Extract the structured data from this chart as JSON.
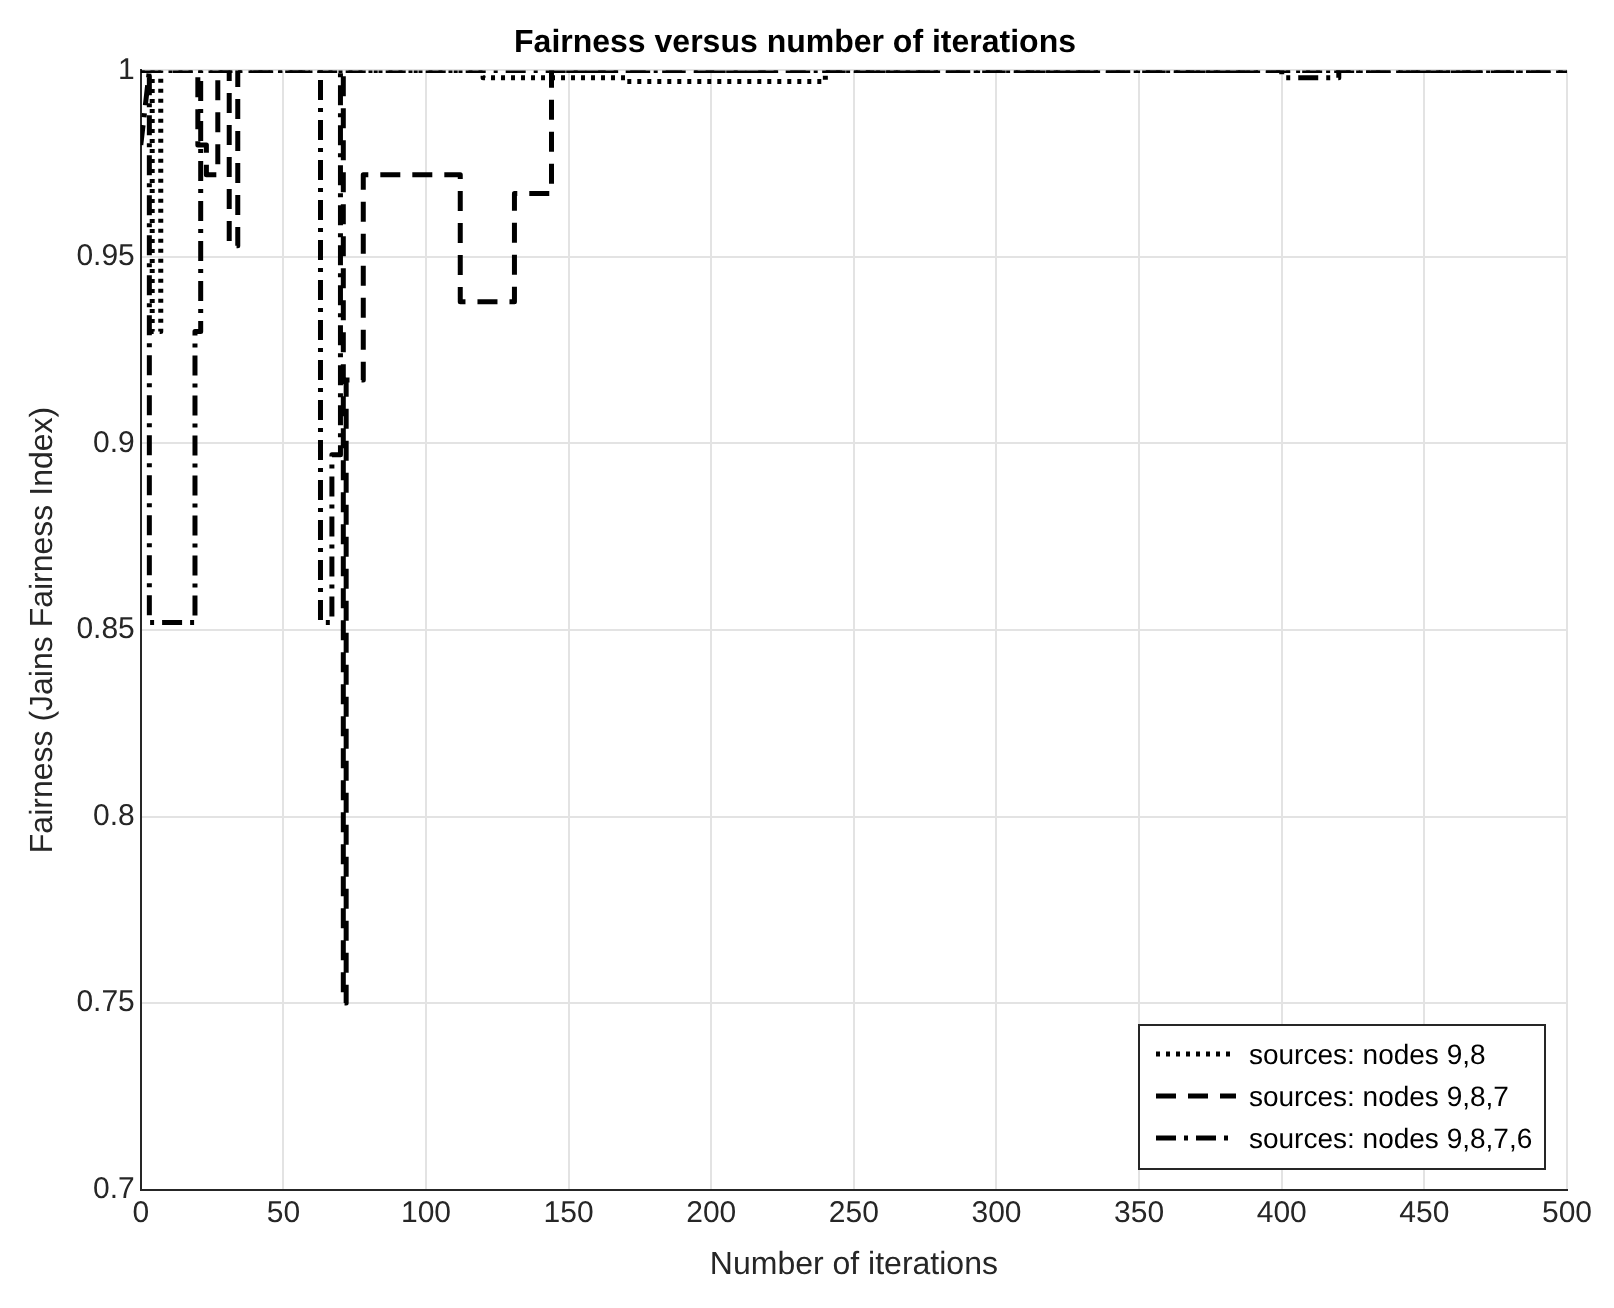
{
  "chart_data": {
    "type": "line",
    "title": "Fairness versus number of iterations",
    "xlabel": "Number of iterations",
    "ylabel": "Fairness (Jains Fairness Index)",
    "xlim": [
      0,
      500
    ],
    "xticks": [
      0,
      50,
      100,
      150,
      200,
      250,
      300,
      350,
      400,
      450,
      500
    ],
    "ylim": [
      0.7,
      1
    ],
    "yticks": [
      0.7,
      0.75,
      0.8,
      0.85,
      0.9,
      0.95,
      1
    ],
    "grid": true,
    "legend": "bottom right",
    "marker": "none",
    "series": [
      {
        "name": "sources: nodes 9,8",
        "color": "#000000",
        "line_style": "dotted",
        "x": [
          0,
          4,
          4,
          7,
          7,
          120,
          120,
          170,
          170,
          240,
          240,
          500
        ],
        "values": [
          1,
          1,
          0.93,
          0.93,
          1,
          1,
          0.998,
          0.998,
          0.997,
          0.997,
          1,
          1
        ]
      },
      {
        "name": "sources: nodes 9,8,7",
        "color": "#000000",
        "line_style": "dashed",
        "x": [
          0,
          20,
          20,
          23,
          23,
          27,
          27,
          31,
          31,
          34,
          34,
          71,
          71,
          72,
          72,
          78,
          78,
          112,
          112,
          131,
          131,
          144,
          144,
          500
        ],
        "values": [
          1,
          1,
          0.98,
          0.98,
          0.972,
          0.972,
          1,
          1,
          0.953,
          0.953,
          1,
          1,
          0.75,
          0.75,
          0.917,
          0.917,
          0.972,
          0.972,
          0.938,
          0.938,
          0.967,
          0.967,
          1,
          1
        ]
      },
      {
        "name": "sources: nodes 9,8,7,6",
        "color": "#000000",
        "line_style": "dashdot",
        "x": [
          0,
          3,
          3,
          19,
          19,
          21,
          21,
          63,
          63,
          67,
          67,
          70,
          70,
          400,
          400,
          420,
          420,
          500
        ],
        "values": [
          0.98,
          1,
          0.852,
          0.852,
          0.93,
          0.93,
          1,
          1,
          0.852,
          0.852,
          0.897,
          0.897,
          1,
          1,
          0.998,
          0.998,
          1,
          1
        ]
      }
    ]
  }
}
